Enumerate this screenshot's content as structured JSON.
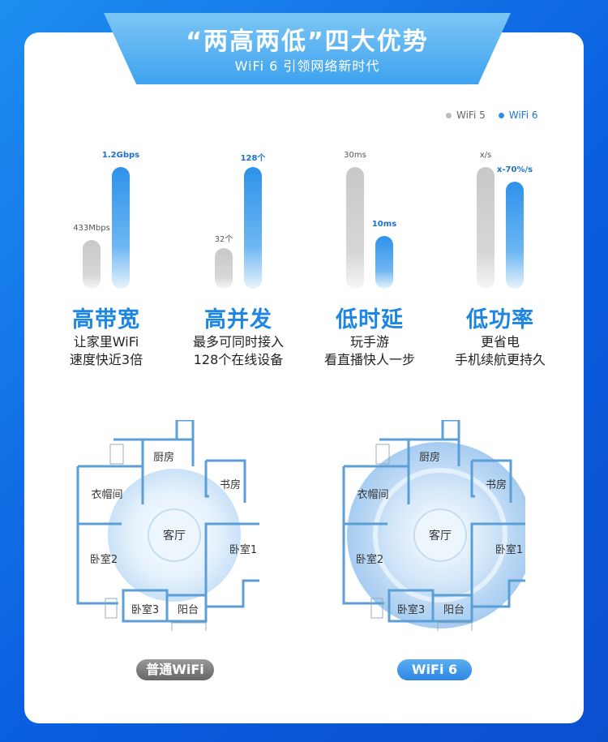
{
  "header": {
    "title": "“两高两低”四大优势",
    "subtitle": "WiFi 6 引领网络新时代"
  },
  "legend": {
    "wifi5": "WiFi 5",
    "wifi6": "WiFi 6"
  },
  "features": [
    {
      "heading": "高带宽",
      "line1": "让家里WiFi",
      "line2": "速度快近3倍",
      "wifi5_label": "433Mbps",
      "wifi6_label": "1.2Gbps",
      "wifi5_level": 0.4,
      "wifi6_level": 1.0
    },
    {
      "heading": "高并发",
      "line1": "最多可同时接入",
      "line2": "128个在线设备",
      "wifi5_label": "32个",
      "wifi6_label": "128个",
      "wifi5_level": 0.33,
      "wifi6_level": 1.0
    },
    {
      "heading": "低时延",
      "line1": "玩手游",
      "line2": "看直播快人一步",
      "wifi5_label": "30ms",
      "wifi6_label": "10ms",
      "wifi5_level": 1.0,
      "wifi6_level": 0.43
    },
    {
      "heading": "低功率",
      "line1": "更省电",
      "line2": "手机续航更持久",
      "wifi5_label": "x/s",
      "wifi6_label": "x-70%/s",
      "wifi5_level": 1.0,
      "wifi6_level": 0.88
    }
  ],
  "rooms": {
    "kitchen": "厨房",
    "closet": "衣帽间",
    "study": "书房",
    "living": "客厅",
    "bed1": "卧室1",
    "bed2": "卧室2",
    "bed3": "卧室3",
    "balcony": "阳台"
  },
  "plans": {
    "left_label": "普通WiFi",
    "right_label": "WiFi 6"
  },
  "colors": {
    "background": "#0a5fe0",
    "accent": "#1c86e2",
    "wifi5": "#c8c8c8",
    "wifi6": "#2e8de8"
  }
}
